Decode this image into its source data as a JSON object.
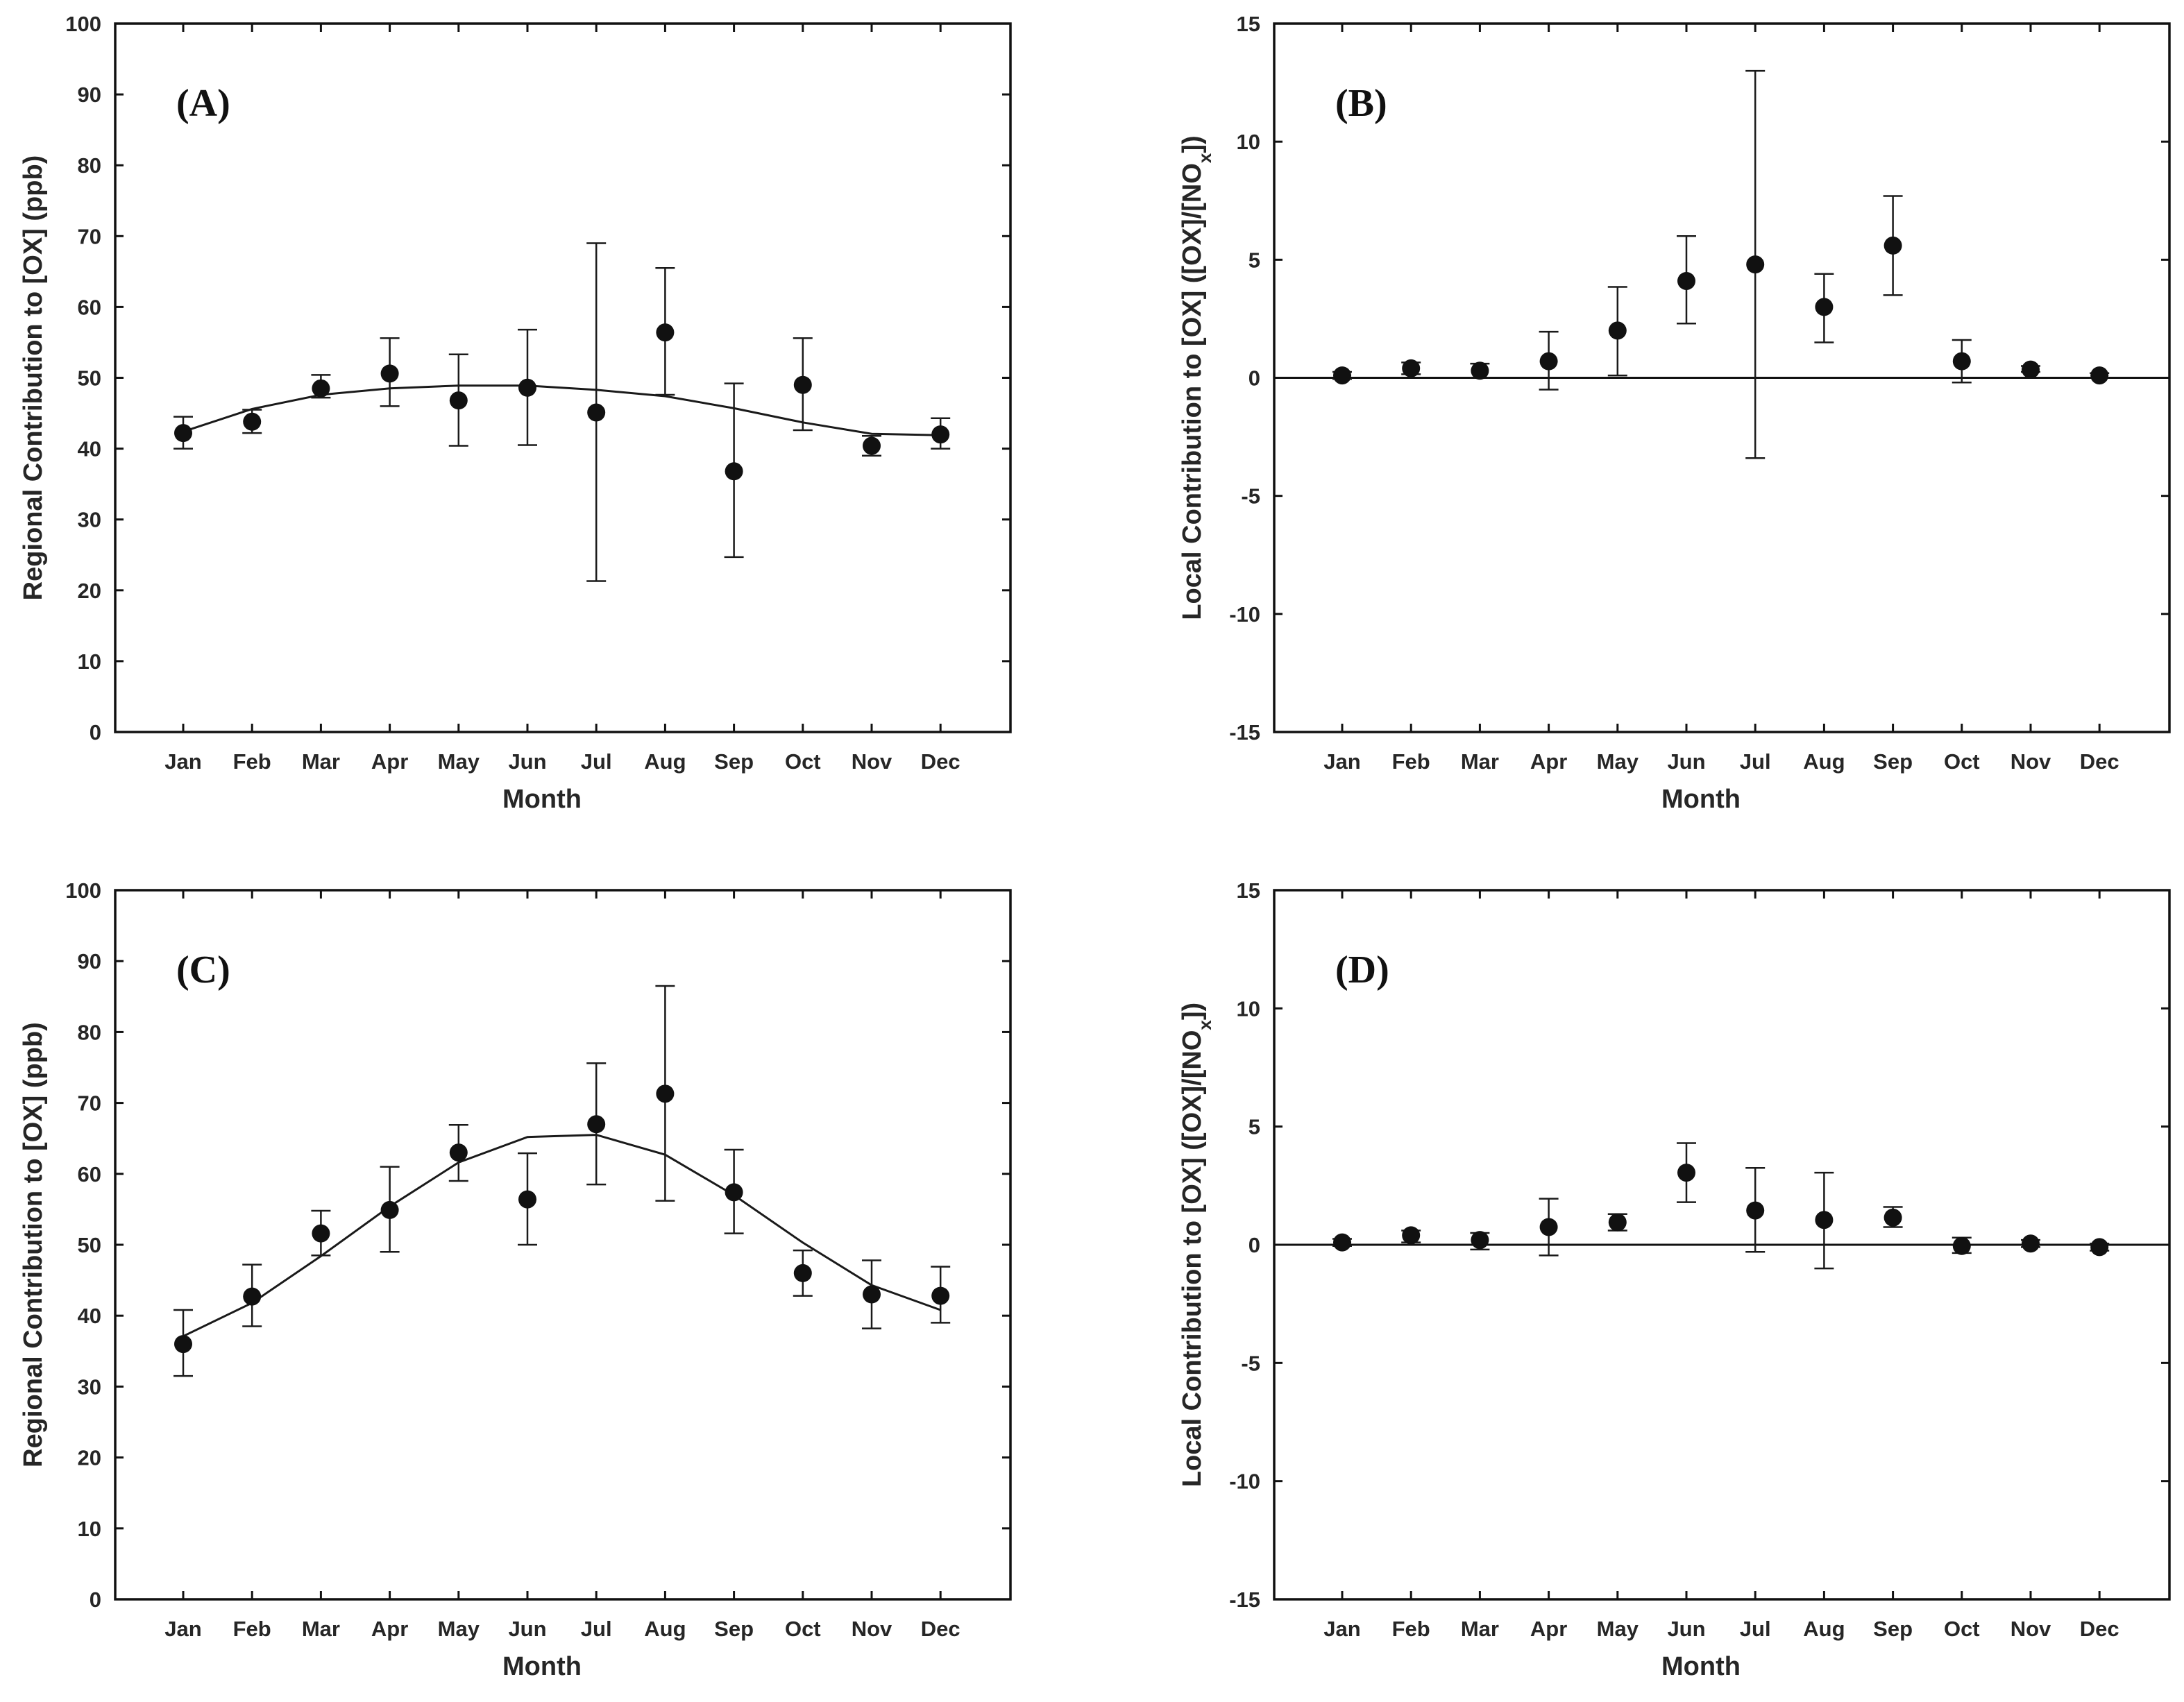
{
  "chart_data": [
    {
      "type": "scatter",
      "panel_label": "(A)",
      "categories": [
        "Jan",
        "Feb",
        "Mar",
        "Apr",
        "May",
        "Jun",
        "Jul",
        "Aug",
        "Sep",
        "Oct",
        "Nov",
        "Dec"
      ],
      "values": [
        42.2,
        43.8,
        48.5,
        50.6,
        46.8,
        48.6,
        45.1,
        56.4,
        36.8,
        49.0,
        40.4,
        42.0
      ],
      "err_lower": [
        40.0,
        42.2,
        47.2,
        46.0,
        40.4,
        40.5,
        21.3,
        47.6,
        24.7,
        42.6,
        39.0,
        40.0
      ],
      "err_upper": [
        44.5,
        45.5,
        50.4,
        55.6,
        53.3,
        56.8,
        69.0,
        65.5,
        49.2,
        55.6,
        41.8,
        44.3
      ],
      "fit": [
        42.4,
        45.6,
        47.6,
        48.5,
        48.9,
        48.9,
        48.3,
        47.4,
        45.7,
        43.7,
        42.1,
        41.9
      ],
      "xlabel": "Month",
      "ylabel": "Regional Contribution to [OX] (ppb)",
      "ylim": [
        0,
        100
      ],
      "yticks": [
        0,
        10,
        20,
        30,
        40,
        50,
        60,
        70,
        80,
        90,
        100
      ],
      "zero_line": false
    },
    {
      "type": "scatter",
      "panel_label": "(B)",
      "categories": [
        "Jan",
        "Feb",
        "Mar",
        "Apr",
        "May",
        "Jun",
        "Jul",
        "Aug",
        "Sep",
        "Oct",
        "Nov",
        "Dec"
      ],
      "values": [
        0.1,
        0.4,
        0.3,
        0.7,
        2.0,
        4.1,
        4.8,
        3.0,
        5.6,
        0.7,
        0.35,
        0.1
      ],
      "err_lower": [
        -0.05,
        0.15,
        0.0,
        -0.5,
        0.1,
        2.3,
        -3.4,
        1.5,
        3.5,
        -0.2,
        0.25,
        0.0
      ],
      "err_upper": [
        0.25,
        0.65,
        0.6,
        1.95,
        3.85,
        6.0,
        13.0,
        4.4,
        7.7,
        1.6,
        0.5,
        0.2
      ],
      "xlabel": "Month",
      "ylabel": "Local Contribution to [OX] ([OX]/[NO",
      "ylabel_subscript": "x",
      "ylabel_end": "])",
      "ylim": [
        -15,
        15
      ],
      "yticks": [
        -15,
        -10,
        -5,
        0,
        5,
        10,
        15
      ],
      "zero_line": true
    },
    {
      "type": "scatter",
      "panel_label": "(C)",
      "categories": [
        "Jan",
        "Feb",
        "Mar",
        "Apr",
        "May",
        "Jun",
        "Jul",
        "Aug",
        "Sep",
        "Oct",
        "Nov",
        "Dec"
      ],
      "values": [
        36.0,
        42.7,
        51.6,
        54.9,
        63.0,
        56.4,
        67.0,
        71.3,
        57.4,
        46.0,
        43.0,
        42.8
      ],
      "err_lower": [
        31.5,
        38.5,
        48.5,
        49.0,
        59.0,
        50.0,
        58.5,
        56.2,
        51.6,
        42.8,
        38.2,
        39.0
      ],
      "err_upper": [
        40.8,
        47.2,
        54.8,
        61.0,
        66.9,
        62.9,
        75.6,
        86.5,
        63.4,
        49.2,
        47.8,
        46.9
      ],
      "fit": [
        37.1,
        41.8,
        48.4,
        55.4,
        61.6,
        65.2,
        65.5,
        62.7,
        57.0,
        50.3,
        44.3,
        40.8
      ],
      "xlabel": "Month",
      "ylabel": "Regional Contribution to [OX] (ppb)",
      "ylim": [
        0,
        100
      ],
      "yticks": [
        0,
        10,
        20,
        30,
        40,
        50,
        60,
        70,
        80,
        90,
        100
      ],
      "zero_line": false
    },
    {
      "type": "scatter",
      "panel_label": "(D)",
      "categories": [
        "Jan",
        "Feb",
        "Mar",
        "Apr",
        "May",
        "Jun",
        "Jul",
        "Aug",
        "Sep",
        "Oct",
        "Nov",
        "Dec"
      ],
      "values": [
        0.1,
        0.4,
        0.2,
        0.75,
        0.95,
        3.05,
        1.45,
        1.05,
        1.15,
        -0.05,
        0.05,
        -0.1
      ],
      "err_lower": [
        -0.05,
        0.1,
        -0.2,
        -0.45,
        0.6,
        1.8,
        -0.3,
        -1.0,
        0.75,
        -0.35,
        -0.1,
        -0.25
      ],
      "err_upper": [
        0.25,
        0.6,
        0.5,
        1.95,
        1.3,
        4.3,
        3.25,
        3.05,
        1.6,
        0.3,
        0.2,
        0.05
      ],
      "xlabel": "Month",
      "ylabel": "Local Contribution to [OX] ([OX]/[NO",
      "ylabel_subscript": "x",
      "ylabel_end": "])",
      "ylim": [
        -15,
        15
      ],
      "yticks": [
        -15,
        -10,
        -5,
        0,
        5,
        10,
        15
      ],
      "zero_line": true
    }
  ]
}
